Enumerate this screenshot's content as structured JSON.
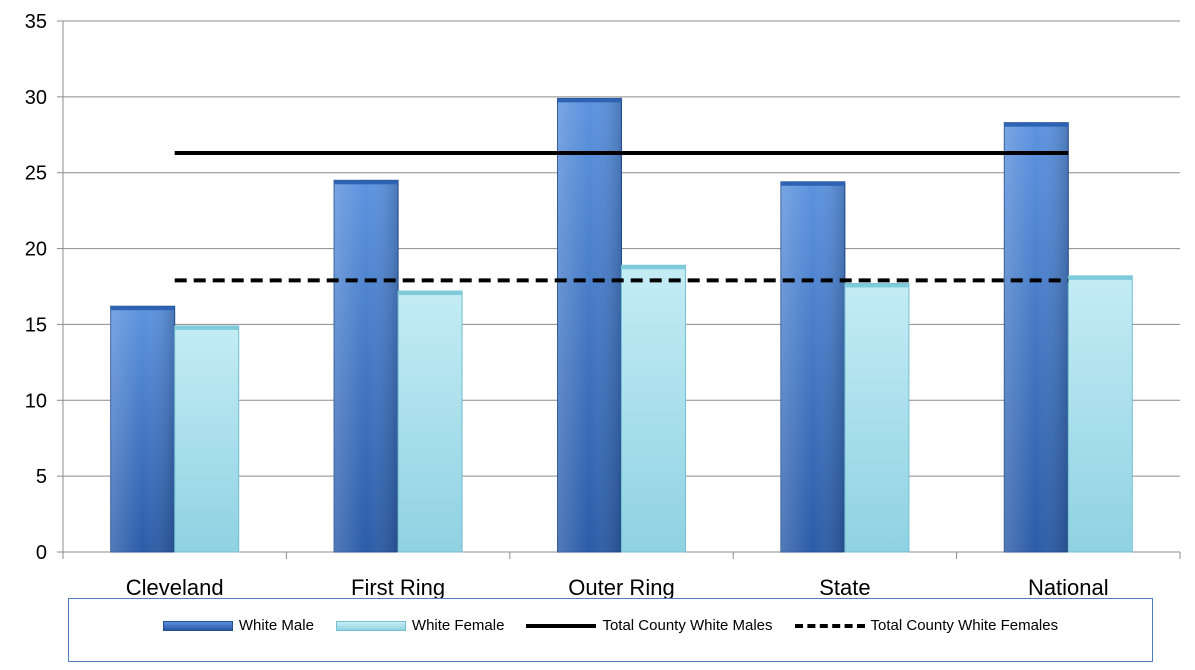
{
  "chart_data": {
    "type": "bar",
    "categories": [
      "Cleveland",
      "First Ring",
      "Outer Ring",
      "State",
      "National"
    ],
    "series": [
      {
        "name": "White Male",
        "values": [
          16.2,
          24.5,
          29.9,
          24.4,
          28.3
        ],
        "color": "#3a73c8"
      },
      {
        "name": "White Female",
        "values": [
          14.9,
          17.2,
          18.9,
          17.7,
          18.2
        ],
        "color": "#a4e0ee"
      }
    ],
    "reference_lines": [
      {
        "name": "Total County White Males",
        "value": 26.3,
        "style": "solid",
        "color": "#000000"
      },
      {
        "name": "Total County White Females",
        "value": 17.9,
        "style": "dashed",
        "color": "#000000"
      }
    ],
    "ylim": [
      0,
      35
    ],
    "yticks": [
      0,
      5,
      10,
      15,
      20,
      25,
      30,
      35
    ],
    "grid": true,
    "legend_position": "bottom",
    "title": "",
    "xlabel": "",
    "ylabel": ""
  },
  "legend": {
    "items": [
      {
        "label": "White Male"
      },
      {
        "label": "White Female"
      },
      {
        "label": "Total County White Males"
      },
      {
        "label": "Total County White Females"
      }
    ]
  }
}
